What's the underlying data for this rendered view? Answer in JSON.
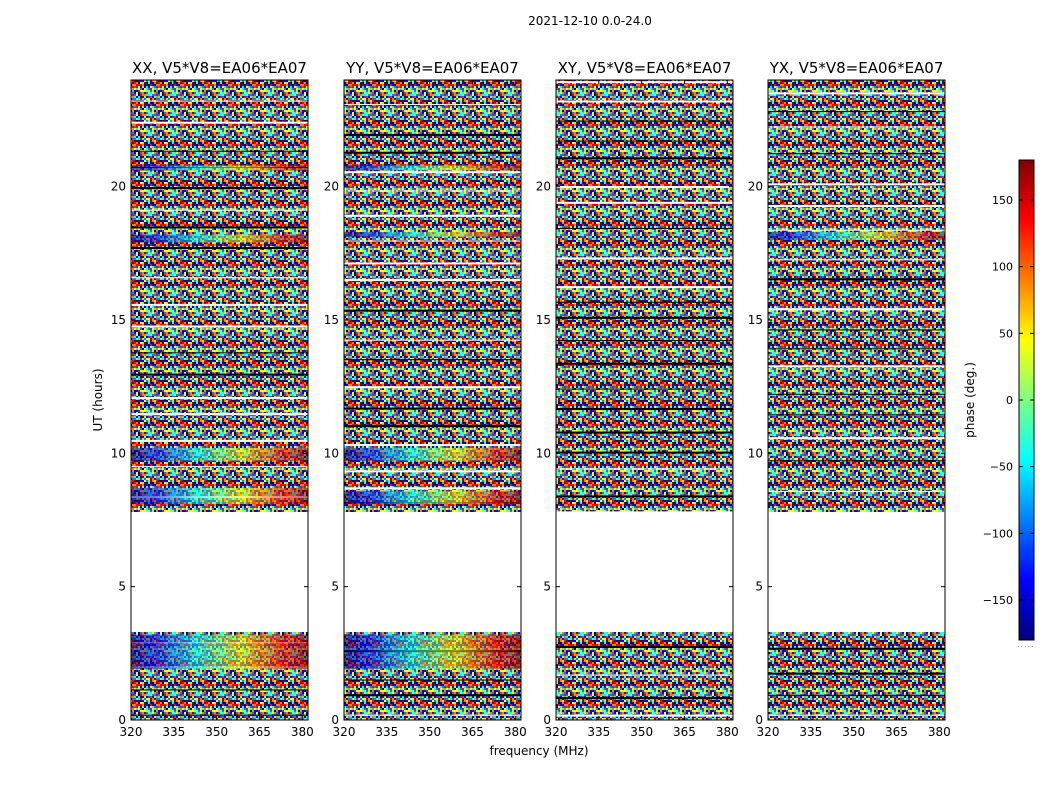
{
  "figure_title": "2021-12-10 0.0-24.0",
  "colors": {
    "jet": [
      "#00007f",
      "#0000ff",
      "#007fff",
      "#00ffff",
      "#7fff7f",
      "#ffff00",
      "#ff7f00",
      "#ff0000",
      "#7f0000"
    ],
    "axis": "#000000"
  },
  "chart_data": [
    {
      "type": "heatmap",
      "title": "XX, V5*V8=EA06*EA07",
      "ylabel": "UT (hours)",
      "xlabel": "",
      "xlim": [
        320,
        382
      ],
      "ylim": [
        0,
        24
      ],
      "xticks": [
        320,
        335,
        350,
        365,
        380
      ],
      "yticks": [
        0,
        5,
        10,
        15,
        20
      ],
      "gaps_hours": [
        [
          3.3,
          7.8
        ]
      ],
      "coherent_bands_hours": [
        [
          1.9,
          3.2
        ],
        [
          8.1,
          8.7
        ],
        [
          9.7,
          10.2
        ],
        [
          20.6,
          20.8
        ],
        [
          17.9,
          18.2
        ]
      ]
    },
    {
      "type": "heatmap",
      "title": "YY, V5*V8=EA06*EA07",
      "ylabel": "",
      "xlabel": "frequency (MHz)",
      "xlim": [
        320,
        382
      ],
      "ylim": [
        0,
        24
      ],
      "xticks": [
        320,
        335,
        350,
        365,
        380
      ],
      "yticks": [
        0,
        5,
        10,
        15,
        20
      ],
      "gaps_hours": [
        [
          3.3,
          7.8
        ]
      ],
      "coherent_bands_hours": [
        [
          1.9,
          3.2
        ],
        [
          8.1,
          8.6
        ],
        [
          9.7,
          10.2
        ],
        [
          20.6,
          20.8
        ],
        [
          18.1,
          18.3
        ]
      ]
    },
    {
      "type": "heatmap",
      "title": "XY, V5*V8=EA06*EA07",
      "ylabel": "",
      "xlabel": "",
      "xlim": [
        320,
        382
      ],
      "ylim": [
        0,
        24
      ],
      "xticks": [
        320,
        335,
        350,
        365,
        380
      ],
      "yticks": [
        0,
        5,
        10,
        15,
        20
      ],
      "gaps_hours": [
        [
          3.3,
          7.8
        ]
      ],
      "coherent_bands_hours": []
    },
    {
      "type": "heatmap",
      "title": "YX, V5*V8=EA06*EA07",
      "ylabel": "",
      "xlabel": "",
      "xlim": [
        320,
        382
      ],
      "ylim": [
        0,
        24
      ],
      "xticks": [
        320,
        335,
        350,
        365,
        380
      ],
      "yticks": [
        0,
        5,
        10,
        15,
        20
      ],
      "gaps_hours": [
        [
          3.3,
          7.8
        ]
      ],
      "coherent_bands_hours": [
        [
          18.0,
          18.3
        ]
      ]
    }
  ],
  "colorbar": {
    "label": "phase (deg.)",
    "range": [
      -180,
      180
    ],
    "ticks": [
      -150,
      -100,
      -50,
      0,
      50,
      100,
      150
    ],
    "tick_labels": [
      "−150",
      "−100",
      "−50",
      "0",
      "50",
      "100",
      "150"
    ],
    "extra_mark": "....."
  }
}
